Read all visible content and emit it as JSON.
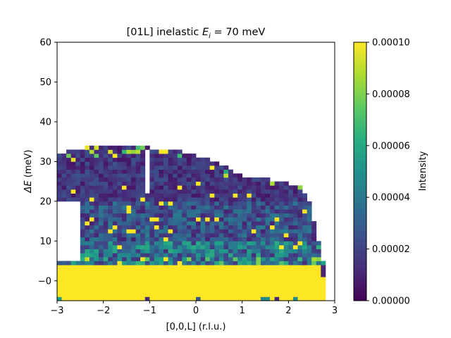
{
  "chart_data": {
    "type": "heatmap",
    "title_text": "[01L] inelastic ",
    "title_math": "E",
    "title_sub": "i",
    "title_tail": " = 70 meV",
    "xlabel": "[0,0,L] (r.l.u.)",
    "ylabel_math": "ΔE",
    "ylabel_tail": " (meV)",
    "xlim": [
      -3,
      3
    ],
    "ylim": [
      -5,
      60
    ],
    "xticks": [
      "−3",
      "−2",
      "−1",
      "0",
      "1",
      "2",
      "3"
    ],
    "xtick_values": [
      -3,
      -2,
      -1,
      0,
      1,
      2,
      3
    ],
    "yticks": [
      "−0",
      "10",
      "20",
      "30",
      "40",
      "50",
      "60"
    ],
    "ytick_values": [
      0,
      10,
      20,
      30,
      40,
      50,
      60
    ],
    "colorbar": {
      "label": "Intensity",
      "range": [
        0,
        0.0001
      ],
      "ticks": [
        "0.00000",
        "0.00002",
        "0.00004",
        "0.00006",
        "0.00008",
        "0.00010"
      ],
      "tick_values": [
        0,
        2e-05,
        4e-05,
        6e-05,
        8e-05,
        0.0001
      ],
      "colormap": "viridis"
    },
    "grid": false,
    "bin_width_L": 0.1,
    "bin_height_E": 1.0,
    "upper_boundary": [
      [
        -3,
        31
      ],
      [
        -2.8,
        32
      ],
      [
        -2.4,
        33
      ],
      [
        -2.0,
        33.5
      ],
      [
        -1.7,
        34
      ],
      [
        -1.1,
        34
      ],
      [
        -1.0,
        33
      ],
      [
        -0.5,
        32.5
      ],
      [
        0.0,
        31
      ],
      [
        0.3,
        30
      ],
      [
        0.6,
        28.5
      ],
      [
        0.9,
        26.5
      ],
      [
        1.2,
        25.5
      ],
      [
        1.6,
        25
      ],
      [
        2.0,
        24
      ],
      [
        2.3,
        23
      ],
      [
        2.4,
        21
      ],
      [
        2.5,
        18
      ],
      [
        2.6,
        12
      ],
      [
        2.7,
        7
      ],
      [
        2.8,
        3
      ]
    ],
    "lower_gap_edge": [
      [
        -3,
        20
      ],
      [
        -2.6,
        21
      ],
      [
        -2.4,
        19
      ],
      [
        -2.4,
        6
      ],
      [
        -2.6,
        5
      ],
      [
        -2.8,
        5
      ],
      [
        -3,
        5
      ]
    ],
    "gap_at_L": -1.05,
    "gap_E_range": [
      22,
      33
    ],
    "elastic_band_E": [
      -5,
      4
    ],
    "elastic_intensity": 0.0001,
    "inelastic_intensity_range": [
      0,
      6e-05
    ]
  }
}
